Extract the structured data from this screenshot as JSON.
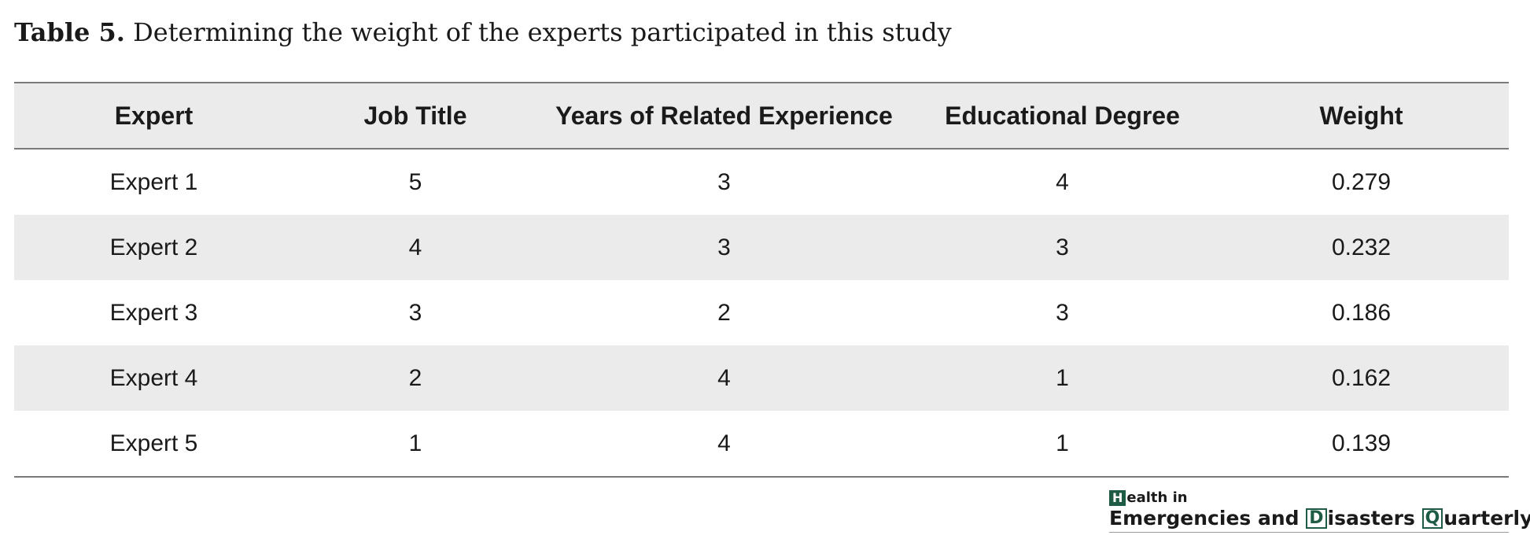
{
  "caption": {
    "label": "Table 5.",
    "text": " Determining the weight of the experts participated in this study"
  },
  "table": {
    "headers": [
      "Expert",
      "Job Title",
      "Years of Related Experience",
      "Educational Degree",
      "Weight"
    ],
    "rows": [
      [
        "Expert 1",
        "5",
        "3",
        "4",
        "0.279"
      ],
      [
        "Expert 2",
        "4",
        "3",
        "3",
        "0.232"
      ],
      [
        "Expert 3",
        "3",
        "2",
        "3",
        "0.186"
      ],
      [
        "Expert 4",
        "2",
        "4",
        "1",
        "0.162"
      ],
      [
        "Expert 5",
        "1",
        "4",
        "1",
        "0.139"
      ]
    ]
  },
  "logo": {
    "line1_initial": "H",
    "line1_rest": "ealth in",
    "word1": "Emergencies and ",
    "d_initial": "D",
    "word2": "isasters ",
    "q_initial": "Q",
    "word3": "uarterly"
  },
  "colors": {
    "header_bg": "#ebebeb",
    "rule": "#7a7a7a",
    "logo_green": "#1f5c45"
  }
}
